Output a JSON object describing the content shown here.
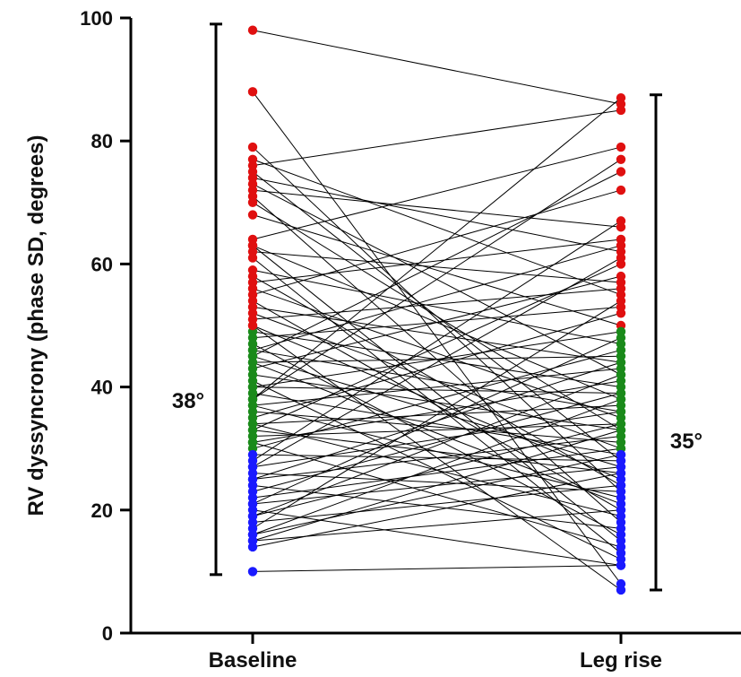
{
  "chart_data": {
    "type": "paired-line-scatter",
    "ylabel": "RV dyssyncrony (phase SD, degrees)",
    "xlabel": "",
    "categories": [
      "Baseline",
      "Leg rise"
    ],
    "ylim": [
      0,
      100
    ],
    "yticks": [
      0,
      20,
      40,
      60,
      80,
      100
    ],
    "grid": false,
    "color_bands": [
      {
        "range": [
          0,
          30
        ],
        "color": "#1a1aff"
      },
      {
        "range": [
          30,
          49.5
        ],
        "color": "#1a8a1a"
      },
      {
        "range": [
          49.5,
          100
        ],
        "color": "#e01010"
      }
    ],
    "line_color": "#000000",
    "range_bars": [
      {
        "category": "Baseline",
        "low": 9.5,
        "high": 99,
        "label": "38°"
      },
      {
        "category": "Leg rise",
        "low": 7,
        "high": 87.5,
        "label": "35°"
      }
    ],
    "pairs": [
      [
        98,
        86
      ],
      [
        88,
        8
      ],
      [
        79,
        23
      ],
      [
        77,
        55
      ],
      [
        76,
        85
      ],
      [
        75,
        28
      ],
      [
        74,
        62
      ],
      [
        73,
        42
      ],
      [
        72,
        66
      ],
      [
        71,
        18
      ],
      [
        70,
        33
      ],
      [
        68,
        50
      ],
      [
        64,
        79
      ],
      [
        63,
        38
      ],
      [
        62,
        57
      ],
      [
        61,
        13
      ],
      [
        59,
        47
      ],
      [
        58,
        24
      ],
      [
        57,
        64
      ],
      [
        56,
        35
      ],
      [
        55,
        72
      ],
      [
        54,
        20
      ],
      [
        53,
        44
      ],
      [
        52,
        30
      ],
      [
        51,
        56
      ],
      [
        50,
        25
      ],
      [
        49,
        40
      ],
      [
        48,
        53
      ],
      [
        47,
        16
      ],
      [
        46,
        36
      ],
      [
        46,
        63
      ],
      [
        45,
        27
      ],
      [
        44,
        45
      ],
      [
        44,
        21
      ],
      [
        43,
        58
      ],
      [
        42,
        33
      ],
      [
        41,
        12
      ],
      [
        40,
        39
      ],
      [
        40,
        49
      ],
      [
        39,
        29
      ],
      [
        38,
        77
      ],
      [
        37,
        22
      ],
      [
        37,
        43
      ],
      [
        36,
        31
      ],
      [
        35,
        52
      ],
      [
        34,
        19
      ],
      [
        34,
        37
      ],
      [
        33,
        26
      ],
      [
        33,
        60
      ],
      [
        32,
        34
      ],
      [
        31,
        41
      ],
      [
        31,
        14
      ],
      [
        30,
        46
      ],
      [
        29,
        28
      ],
      [
        28,
        67
      ],
      [
        27,
        36
      ],
      [
        26,
        23
      ],
      [
        25,
        44
      ],
      [
        25,
        32
      ],
      [
        24,
        17
      ],
      [
        23,
        39
      ],
      [
        22,
        30
      ],
      [
        21,
        48
      ],
      [
        21,
        27
      ],
      [
        20,
        11
      ],
      [
        19,
        42
      ],
      [
        19,
        34
      ],
      [
        18,
        24
      ],
      [
        17,
        54
      ],
      [
        16,
        29
      ],
      [
        16,
        38
      ],
      [
        15,
        33
      ],
      [
        15,
        20
      ],
      [
        14,
        26
      ],
      [
        10,
        11
      ],
      [
        45,
        75
      ],
      [
        50,
        7
      ],
      [
        63,
        15
      ],
      [
        38,
        87
      ],
      [
        27,
        61
      ]
    ]
  }
}
